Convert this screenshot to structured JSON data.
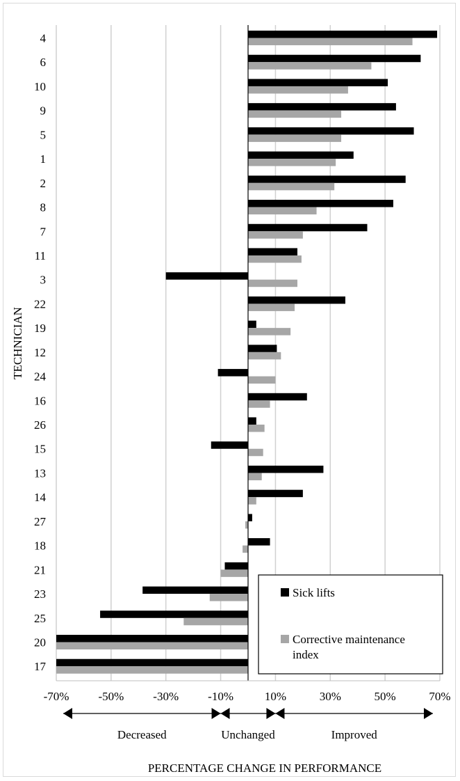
{
  "chart_data": {
    "type": "bar",
    "orientation": "horizontal",
    "ylabel": "TECHNICIAN",
    "xlabel": "PERCENTAGE CHANGE IN PERFORMANCE",
    "xlim": [
      -70,
      70
    ],
    "xticks": [
      "-70%",
      "-50%",
      "-30%",
      "-10%",
      "10%",
      "30%",
      "50%",
      "70%"
    ],
    "grid": true,
    "legend_position": "bottom-right",
    "categories": [
      "4",
      "6",
      "10",
      "9",
      "5",
      "1",
      "2",
      "8",
      "7",
      "11",
      "3",
      "22",
      "19",
      "12",
      "24",
      "16",
      "26",
      "15",
      "13",
      "14",
      "27",
      "18",
      "21",
      "23",
      "25",
      "20",
      "17"
    ],
    "series": [
      {
        "name": "Sick lifts",
        "color": "#000000",
        "values": [
          69,
          63,
          51,
          54,
          60.5,
          38.5,
          57.5,
          53,
          43.5,
          18,
          -30,
          35.5,
          3,
          10.5,
          -11,
          21.5,
          3,
          -13.5,
          27.5,
          20,
          1.5,
          8,
          -8.5,
          -38.5,
          -54,
          -70,
          -70
        ]
      },
      {
        "name": "Corrective maintenance index",
        "name_lines": [
          "Corrective maintenance",
          "index"
        ],
        "color": "#a6a6a6",
        "values": [
          60,
          45,
          36.5,
          34,
          34,
          32,
          31.5,
          25,
          20,
          19.5,
          18,
          17,
          15.5,
          12,
          10,
          8,
          6,
          5.5,
          5,
          3,
          -1,
          -2,
          -10,
          -14,
          -23.5,
          -70,
          -70
        ]
      }
    ],
    "zones": [
      {
        "label": "Decreased",
        "range": [
          -70,
          -10
        ]
      },
      {
        "label": "Unchanged",
        "range": [
          -10,
          10
        ]
      },
      {
        "label": "Improved",
        "range": [
          10,
          70
        ]
      }
    ]
  }
}
